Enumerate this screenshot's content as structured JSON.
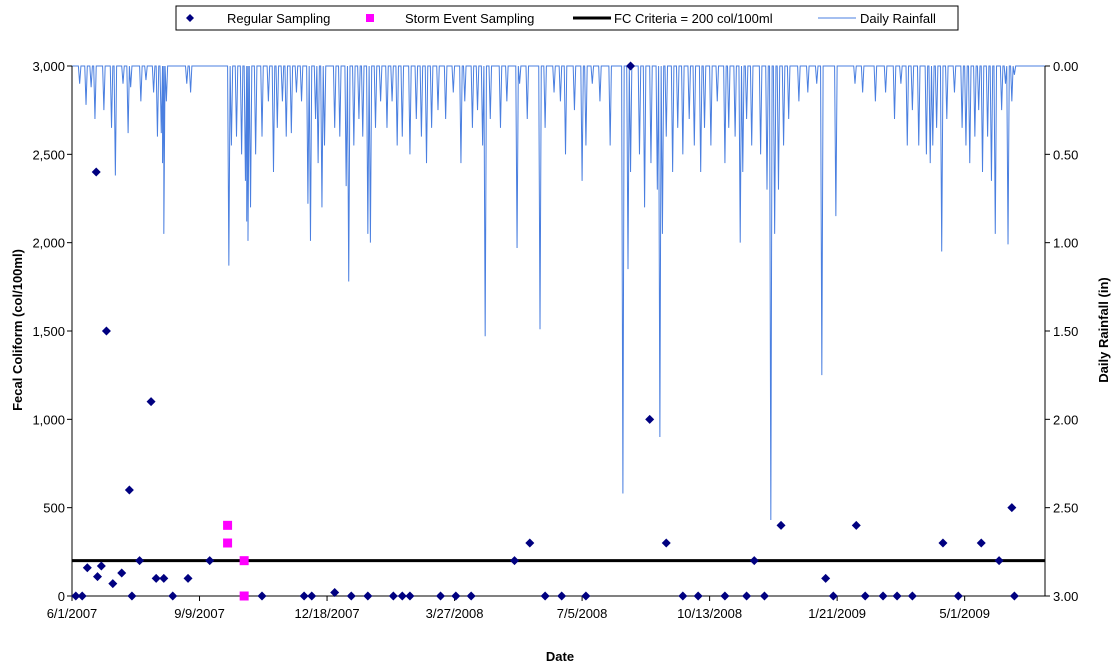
{
  "chart_data": {
    "type": "scatter",
    "xlabel": "Date",
    "ylabel": "Fecal Coliform (col/100ml)",
    "y2label": "Daily Rainfall (in)",
    "ylim": [
      0,
      3000
    ],
    "y2lim": [
      3.0,
      0.0
    ],
    "y2_inverted": true,
    "xlim": [
      "2007-06-01",
      "2009-07-03"
    ],
    "x_tick_labels": [
      "6/1/2007",
      "9/9/2007",
      "12/18/2007",
      "3/27/2008",
      "7/5/2008",
      "10/13/2008",
      "1/21/2009",
      "5/1/2009"
    ],
    "y_tick_labels": [
      "0",
      "500",
      "1,000",
      "1,500",
      "2,000",
      "2,500",
      "3,000"
    ],
    "y2_tick_labels": [
      "3.00",
      "2.50",
      "2.00",
      "1.50",
      "1.00",
      "0.50",
      "0.00"
    ],
    "grid": false,
    "legend_position": "top",
    "colors": {
      "regular": "#000080",
      "storm": "#ff00ff",
      "criteria": "#000000",
      "rainfall": "#4a7fe0"
    },
    "legend": [
      {
        "label": "Regular Sampling",
        "marker": "diamond"
      },
      {
        "label": "Storm Event Sampling",
        "marker": "square"
      },
      {
        "label": "FC Criteria = 200 col/100ml",
        "marker": "thick-line"
      },
      {
        "label": "Daily Rainfall",
        "marker": "thin-line"
      }
    ],
    "criteria_value": 200,
    "series": [
      {
        "name": "Regular Sampling",
        "points": [
          [
            "2007-06-04",
            0
          ],
          [
            "2007-06-09",
            0
          ],
          [
            "2007-06-13",
            160
          ],
          [
            "2007-06-20",
            2400
          ],
          [
            "2007-06-21",
            110
          ],
          [
            "2007-06-24",
            170
          ],
          [
            "2007-06-28",
            1500
          ],
          [
            "2007-07-03",
            70
          ],
          [
            "2007-07-10",
            130
          ],
          [
            "2007-07-16",
            600
          ],
          [
            "2007-07-18",
            0
          ],
          [
            "2007-07-24",
            200
          ],
          [
            "2007-08-02",
            1100
          ],
          [
            "2007-08-06",
            100
          ],
          [
            "2007-08-12",
            100
          ],
          [
            "2007-08-19",
            0
          ],
          [
            "2007-08-31",
            100
          ],
          [
            "2007-09-17",
            200
          ],
          [
            "2007-10-28",
            0
          ],
          [
            "2007-11-30",
            0
          ],
          [
            "2007-12-06",
            0
          ],
          [
            "2007-12-24",
            20
          ],
          [
            "2008-01-06",
            0
          ],
          [
            "2008-01-19",
            0
          ],
          [
            "2008-02-08",
            0
          ],
          [
            "2008-02-15",
            0
          ],
          [
            "2008-02-21",
            0
          ],
          [
            "2008-03-16",
            0
          ],
          [
            "2008-03-28",
            0
          ],
          [
            "2008-04-09",
            0
          ],
          [
            "2008-05-13",
            200
          ],
          [
            "2008-05-25",
            300
          ],
          [
            "2008-06-06",
            0
          ],
          [
            "2008-06-19",
            0
          ],
          [
            "2008-07-08",
            0
          ],
          [
            "2008-08-12",
            3000
          ],
          [
            "2008-08-27",
            1000
          ],
          [
            "2008-09-09",
            300
          ],
          [
            "2008-09-22",
            0
          ],
          [
            "2008-10-04",
            0
          ],
          [
            "2008-10-25",
            0
          ],
          [
            "2008-11-11",
            0
          ],
          [
            "2008-11-17",
            200
          ],
          [
            "2008-11-25",
            0
          ],
          [
            "2008-12-08",
            400
          ],
          [
            "2009-01-12",
            100
          ],
          [
            "2009-01-18",
            0
          ],
          [
            "2009-02-05",
            400
          ],
          [
            "2009-02-12",
            0
          ],
          [
            "2009-02-26",
            0
          ],
          [
            "2009-03-09",
            0
          ],
          [
            "2009-03-21",
            0
          ],
          [
            "2009-04-14",
            300
          ],
          [
            "2009-04-26",
            0
          ],
          [
            "2009-05-14",
            300
          ],
          [
            "2009-05-28",
            200
          ],
          [
            "2009-06-07",
            500
          ],
          [
            "2009-06-09",
            0
          ]
        ]
      },
      {
        "name": "Storm Event Sampling",
        "points": [
          [
            "2007-10-01",
            400
          ],
          [
            "2007-10-01",
            300
          ],
          [
            "2007-10-14",
            200
          ],
          [
            "2007-10-14",
            0
          ]
        ]
      }
    ],
    "rainfall": {
      "name": "Daily Rainfall",
      "events": [
        [
          "2007-06-07",
          0.1
        ],
        [
          "2007-06-12",
          0.22
        ],
        [
          "2007-06-16",
          0.12
        ],
        [
          "2007-06-19",
          0.3
        ],
        [
          "2007-06-26",
          0.25
        ],
        [
          "2007-07-02",
          0.35
        ],
        [
          "2007-07-05",
          0.62
        ],
        [
          "2007-07-11",
          0.1
        ],
        [
          "2007-07-15",
          0.38
        ],
        [
          "2007-07-17",
          0.12
        ],
        [
          "2007-07-25",
          0.2
        ],
        [
          "2007-07-29",
          0.08
        ],
        [
          "2007-08-04",
          0.15
        ],
        [
          "2007-08-07",
          0.4
        ],
        [
          "2007-08-10",
          0.38
        ],
        [
          "2007-08-11",
          0.55
        ],
        [
          "2007-08-12",
          0.95
        ],
        [
          "2007-08-14",
          0.2
        ],
        [
          "2007-08-30",
          0.1
        ],
        [
          "2007-09-02",
          0.15
        ],
        [
          "2007-10-02",
          1.13
        ],
        [
          "2007-10-04",
          0.45
        ],
        [
          "2007-10-08",
          0.4
        ],
        [
          "2007-10-12",
          0.5
        ],
        [
          "2007-10-15",
          0.65
        ],
        [
          "2007-10-16",
          0.88
        ],
        [
          "2007-10-17",
          0.99
        ],
        [
          "2007-10-19",
          0.8
        ],
        [
          "2007-10-23",
          0.5
        ],
        [
          "2007-10-28",
          0.4
        ],
        [
          "2007-11-02",
          0.2
        ],
        [
          "2007-11-06",
          0.6
        ],
        [
          "2007-11-09",
          0.35
        ],
        [
          "2007-11-13",
          0.2
        ],
        [
          "2007-11-16",
          0.4
        ],
        [
          "2007-11-20",
          0.38
        ],
        [
          "2007-11-24",
          0.15
        ],
        [
          "2007-11-28",
          0.2
        ],
        [
          "2007-12-03",
          0.78
        ],
        [
          "2007-12-05",
          0.99
        ],
        [
          "2007-12-09",
          0.3
        ],
        [
          "2007-12-11",
          0.55
        ],
        [
          "2007-12-14",
          0.8
        ],
        [
          "2007-12-16",
          0.45
        ],
        [
          "2007-12-24",
          0.35
        ],
        [
          "2007-12-28",
          0.4
        ],
        [
          "2008-01-02",
          0.68
        ],
        [
          "2008-01-04",
          1.22
        ],
        [
          "2008-01-08",
          0.45
        ],
        [
          "2008-01-12",
          0.3
        ],
        [
          "2008-01-15",
          0.4
        ],
        [
          "2008-01-19",
          0.95
        ],
        [
          "2008-01-21",
          1.0
        ],
        [
          "2008-01-25",
          0.35
        ],
        [
          "2008-01-29",
          0.2
        ],
        [
          "2008-02-03",
          0.35
        ],
        [
          "2008-02-07",
          0.2
        ],
        [
          "2008-02-11",
          0.45
        ],
        [
          "2008-02-15",
          0.4
        ],
        [
          "2008-02-21",
          0.5
        ],
        [
          "2008-02-26",
          0.3
        ],
        [
          "2008-03-01",
          0.4
        ],
        [
          "2008-03-05",
          0.55
        ],
        [
          "2008-03-09",
          0.35
        ],
        [
          "2008-03-14",
          0.25
        ],
        [
          "2008-03-20",
          0.3
        ],
        [
          "2008-03-26",
          0.15
        ],
        [
          "2008-04-01",
          0.55
        ],
        [
          "2008-04-04",
          0.2
        ],
        [
          "2008-04-10",
          0.35
        ],
        [
          "2008-04-14",
          0.25
        ],
        [
          "2008-04-18",
          0.45
        ],
        [
          "2008-04-20",
          1.53
        ],
        [
          "2008-04-24",
          0.3
        ],
        [
          "2008-05-02",
          0.35
        ],
        [
          "2008-05-07",
          0.2
        ],
        [
          "2008-05-15",
          1.03
        ],
        [
          "2008-05-17",
          0.1
        ],
        [
          "2008-05-23",
          0.3
        ],
        [
          "2008-06-02",
          1.49
        ],
        [
          "2008-06-06",
          0.35
        ],
        [
          "2008-06-13",
          0.15
        ],
        [
          "2008-06-18",
          0.2
        ],
        [
          "2008-06-22",
          0.5
        ],
        [
          "2008-06-29",
          0.25
        ],
        [
          "2008-07-05",
          0.65
        ],
        [
          "2008-07-08",
          0.45
        ],
        [
          "2008-07-13",
          0.1
        ],
        [
          "2008-07-19",
          0.2
        ],
        [
          "2008-07-27",
          0.45
        ],
        [
          "2008-08-06",
          2.42
        ],
        [
          "2008-08-10",
          1.15
        ],
        [
          "2008-08-12",
          0.6
        ],
        [
          "2008-08-19",
          0.5
        ],
        [
          "2008-08-23",
          0.8
        ],
        [
          "2008-08-28",
          0.55
        ],
        [
          "2008-09-02",
          0.7
        ],
        [
          "2008-09-04",
          2.1
        ],
        [
          "2008-09-06",
          0.95
        ],
        [
          "2008-09-09",
          0.4
        ],
        [
          "2008-09-14",
          0.6
        ],
        [
          "2008-09-18",
          0.35
        ],
        [
          "2008-09-22",
          0.5
        ],
        [
          "2008-09-27",
          0.3
        ],
        [
          "2008-10-01",
          0.45
        ],
        [
          "2008-10-06",
          0.6
        ],
        [
          "2008-10-09",
          0.35
        ],
        [
          "2008-10-14",
          0.45
        ],
        [
          "2008-10-19",
          0.2
        ],
        [
          "2008-10-25",
          0.55
        ],
        [
          "2008-10-28",
          0.35
        ],
        [
          "2008-11-02",
          0.4
        ],
        [
          "2008-11-06",
          1.0
        ],
        [
          "2008-11-08",
          0.6
        ],
        [
          "2008-11-11",
          0.3
        ],
        [
          "2008-11-15",
          0.45
        ],
        [
          "2008-11-22",
          0.5
        ],
        [
          "2008-11-27",
          0.7
        ],
        [
          "2008-11-30",
          2.57
        ],
        [
          "2008-12-03",
          0.95
        ],
        [
          "2008-12-06",
          0.7
        ],
        [
          "2008-12-10",
          0.45
        ],
        [
          "2008-12-14",
          0.3
        ],
        [
          "2008-12-22",
          0.2
        ],
        [
          "2008-12-29",
          0.15
        ],
        [
          "2009-01-05",
          0.1
        ],
        [
          "2009-01-09",
          1.75
        ],
        [
          "2009-01-20",
          0.85
        ],
        [
          "2009-02-04",
          0.1
        ],
        [
          "2009-02-10",
          0.15
        ],
        [
          "2009-02-20",
          0.2
        ],
        [
          "2009-02-28",
          0.15
        ],
        [
          "2009-03-07",
          0.3
        ],
        [
          "2009-03-12",
          0.1
        ],
        [
          "2009-03-17",
          0.45
        ],
        [
          "2009-03-21",
          0.25
        ],
        [
          "2009-03-26",
          0.45
        ],
        [
          "2009-04-01",
          0.5
        ],
        [
          "2009-04-04",
          0.55
        ],
        [
          "2009-04-06",
          0.45
        ],
        [
          "2009-04-09",
          0.35
        ],
        [
          "2009-04-13",
          1.05
        ],
        [
          "2009-04-17",
          0.3
        ],
        [
          "2009-04-23",
          0.15
        ],
        [
          "2009-04-29",
          0.35
        ],
        [
          "2009-05-02",
          0.45
        ],
        [
          "2009-05-05",
          0.55
        ],
        [
          "2009-05-09",
          0.4
        ],
        [
          "2009-05-12",
          0.25
        ],
        [
          "2009-05-15",
          0.6
        ],
        [
          "2009-05-19",
          0.4
        ],
        [
          "2009-05-22",
          0.65
        ],
        [
          "2009-05-25",
          0.95
        ],
        [
          "2009-05-30",
          0.25
        ],
        [
          "2009-06-02",
          0.1
        ],
        [
          "2009-06-04",
          1.01
        ],
        [
          "2009-06-07",
          0.2
        ],
        [
          "2009-06-09",
          0.05
        ]
      ]
    }
  }
}
